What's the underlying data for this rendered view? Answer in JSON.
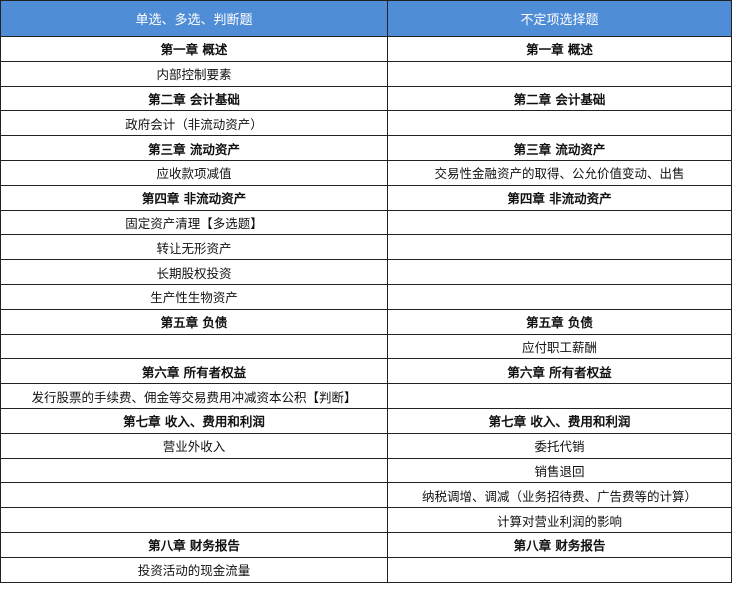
{
  "header": {
    "col1": "单选、多选、判断题",
    "col2": "不定项选择题"
  },
  "rows": [
    {
      "left": "第一章 概述",
      "right": "第一章 概述",
      "chapter": true
    },
    {
      "left": "内部控制要素",
      "right": ""
    },
    {
      "left": "第二章 会计基础",
      "right": "第二章 会计基础",
      "chapter": true
    },
    {
      "left": "政府会计（非流动资产）",
      "right": ""
    },
    {
      "left": "第三章 流动资产",
      "right": "第三章 流动资产",
      "chapter": true
    },
    {
      "left": "应收款项减值",
      "right": "交易性金融资产的取得、公允价值变动、出售"
    },
    {
      "left": "第四章 非流动资产",
      "right": "第四章 非流动资产",
      "chapter": true
    },
    {
      "left": "固定资产清理【多选题】",
      "right": ""
    },
    {
      "left": "转让无形资产",
      "right": ""
    },
    {
      "left": "长期股权投资",
      "right": ""
    },
    {
      "left": "生产性生物资产",
      "right": ""
    },
    {
      "left": "第五章 负债",
      "right": "第五章 负债",
      "chapter": true
    },
    {
      "left": "",
      "right": "应付职工薪酬"
    },
    {
      "left": "第六章 所有者权益",
      "right": "第六章 所有者权益",
      "chapter": true
    },
    {
      "left": "发行股票的手续费、佣金等交易费用冲减资本公积【判断】",
      "right": ""
    },
    {
      "left": "第七章 收入、费用和利润",
      "right": "第七章 收入、费用和利润",
      "chapter": true
    },
    {
      "left": "营业外收入",
      "right": "委托代销"
    },
    {
      "left": "",
      "right": "销售退回"
    },
    {
      "left": "",
      "right": "纳税调增、调减（业务招待费、广告费等的计算）"
    },
    {
      "left": "",
      "right": "计算对营业利润的影响"
    },
    {
      "left": "第八章 财务报告",
      "right": "第八章 财务报告",
      "chapter": true
    },
    {
      "left": "投资活动的现金流量",
      "right": ""
    }
  ],
  "colors": {
    "header_bg": "#4f8dd7",
    "header_text": "#ffffff",
    "border": "#222222"
  }
}
